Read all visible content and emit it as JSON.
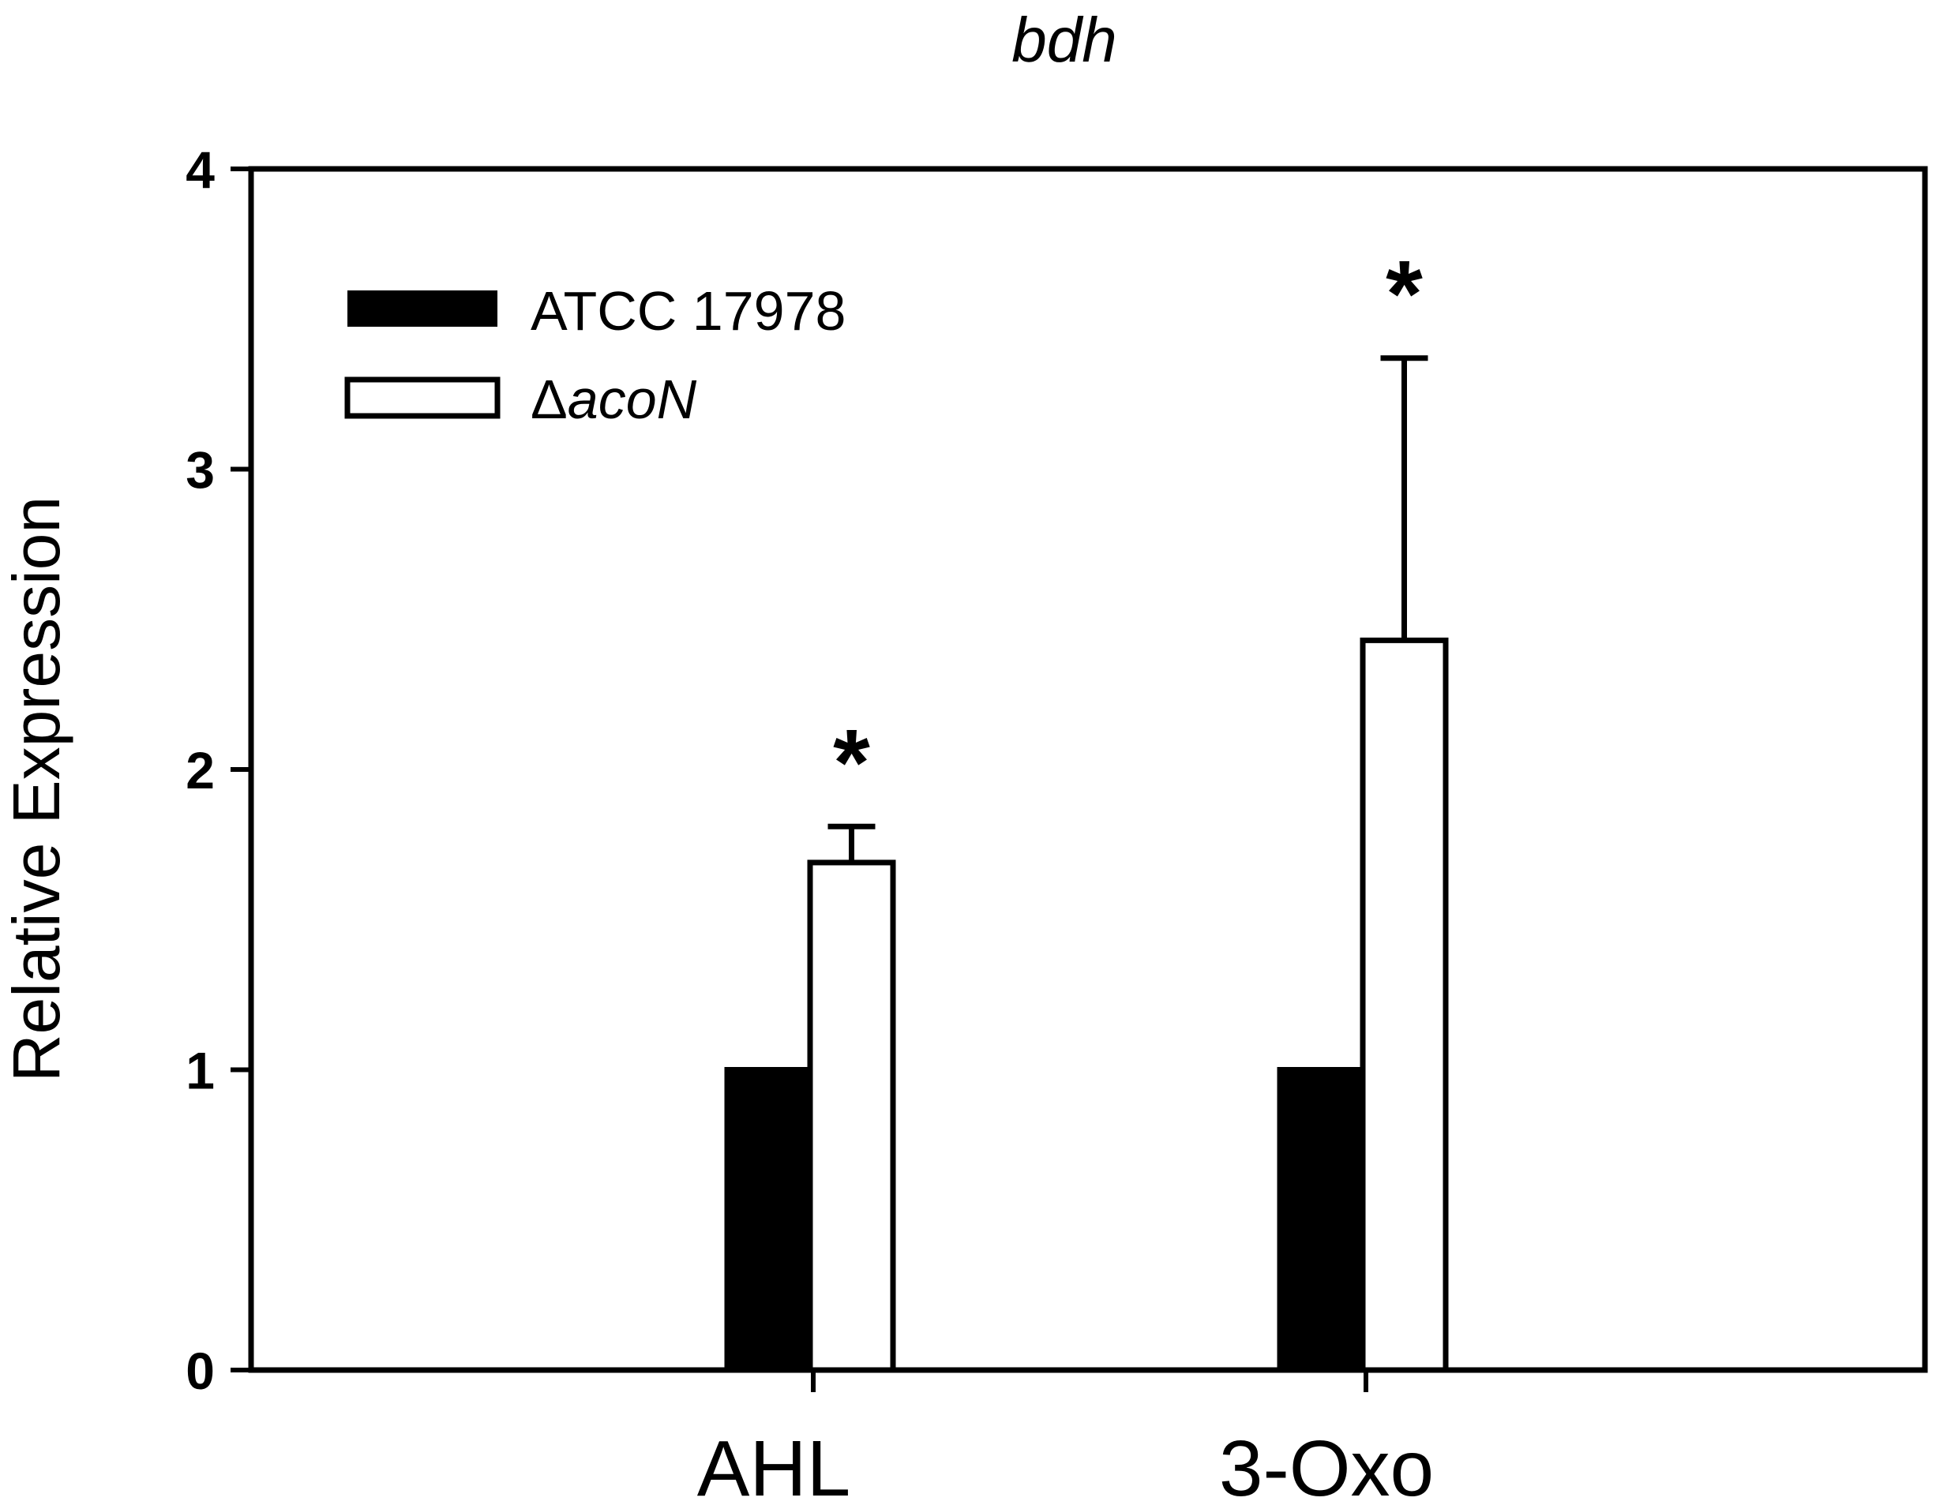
{
  "chart_data": {
    "type": "bar",
    "title": "bdh",
    "xlabel": "",
    "ylabel": "Relative Expression",
    "ylim": [
      0,
      4
    ],
    "yticks": [
      "0",
      "1",
      "2",
      "3",
      "4"
    ],
    "categories": [
      "AHL",
      "3-Oxo"
    ],
    "series": [
      {
        "name": "ATCC 17978",
        "values": [
          1.0,
          1.0
        ],
        "errors": [
          0,
          0
        ],
        "fill": "#000000"
      },
      {
        "name_prefix": "Δ",
        "name_italic": "acoN",
        "values": [
          1.69,
          2.43
        ],
        "errors": [
          0.12,
          0.94
        ],
        "fill": "#ffffff"
      }
    ],
    "annotations": [
      "*",
      "*"
    ],
    "legend_position": "top-left",
    "grid": false
  }
}
